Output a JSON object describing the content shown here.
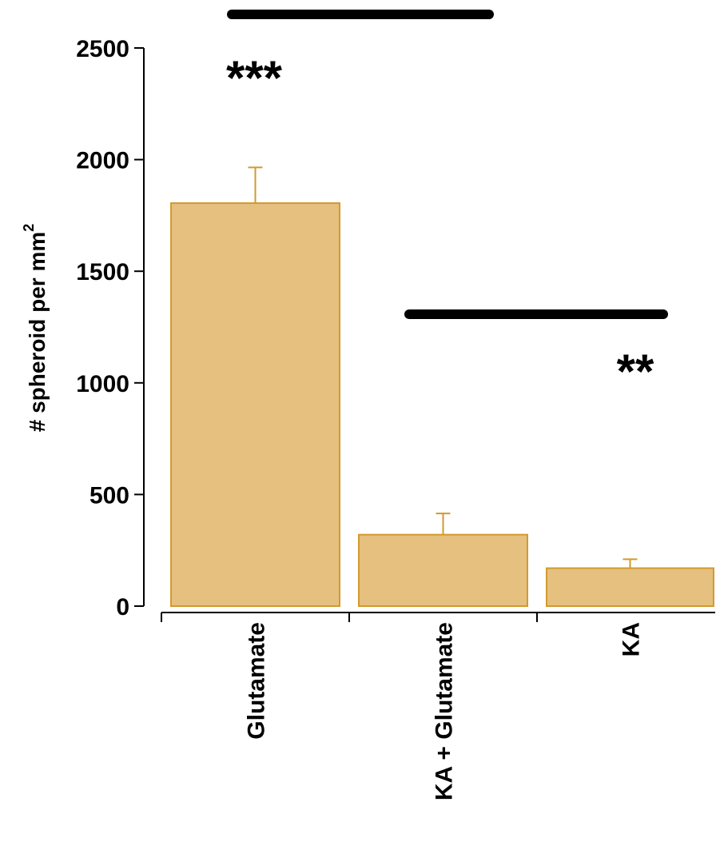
{
  "chart_data": {
    "type": "bar",
    "categories": [
      "Glutamate",
      "KA + Glutamate",
      "KA"
    ],
    "values": [
      1805,
      320,
      170
    ],
    "errors": [
      160,
      95,
      40
    ],
    "ylabel": "# spheroid per mm",
    "ylabel_superscript": "2",
    "ylim": [
      0,
      2500
    ],
    "yticks": [
      0,
      500,
      1000,
      1500,
      2000,
      2500
    ],
    "grid": false,
    "bar_color": "#e5c07f",
    "bar_edge_color": "#d39a2e",
    "significance": [
      {
        "from": 0,
        "to": 1,
        "label": "***"
      },
      {
        "from": 1,
        "to": 2,
        "label": "**"
      }
    ]
  }
}
